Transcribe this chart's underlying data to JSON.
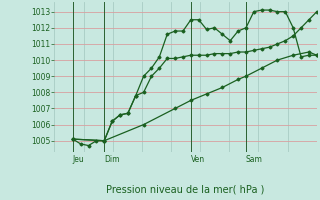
{
  "title": "Pression niveau de la mer( hPa )",
  "bg_color": "#c8e8e0",
  "plot_bg": "#c8e8e0",
  "grid_color_h": "#e8b8b8",
  "grid_color_v": "#b8d8d0",
  "line_color": "#1a6020",
  "ylim": [
    1004.3,
    1013.6
  ],
  "yticks": [
    1005,
    1006,
    1007,
    1008,
    1009,
    1010,
    1011,
    1012,
    1013
  ],
  "xlim": [
    0.0,
    1.0
  ],
  "day_positions": [
    0.07,
    0.19,
    0.52,
    0.73
  ],
  "day_labels": [
    "Jeu",
    "Dim",
    "Ven",
    "Sam"
  ],
  "vline_positions": [
    0.07,
    0.19,
    0.52,
    0.73
  ],
  "line1_x": [
    0.07,
    0.1,
    0.13,
    0.16,
    0.19,
    0.22,
    0.25,
    0.28,
    0.31,
    0.34,
    0.37,
    0.4,
    0.43,
    0.46,
    0.49,
    0.52,
    0.55,
    0.58,
    0.61,
    0.64,
    0.67,
    0.7,
    0.73,
    0.76,
    0.79,
    0.82,
    0.85,
    0.88,
    0.91,
    0.94,
    0.97,
    1.0
  ],
  "line1_y": [
    1005.1,
    1004.8,
    1004.7,
    1005.0,
    1005.0,
    1006.2,
    1006.6,
    1006.7,
    1007.8,
    1008.0,
    1009.0,
    1009.5,
    1010.1,
    1010.1,
    1010.2,
    1010.3,
    1010.3,
    1010.3,
    1010.4,
    1010.4,
    1010.4,
    1010.5,
    1010.5,
    1010.6,
    1010.7,
    1010.8,
    1011.0,
    1011.2,
    1011.5,
    1012.0,
    1012.5,
    1013.0
  ],
  "line2_x": [
    0.07,
    0.19,
    0.22,
    0.25,
    0.28,
    0.31,
    0.34,
    0.37,
    0.4,
    0.43,
    0.46,
    0.49,
    0.52,
    0.55,
    0.58,
    0.61,
    0.64,
    0.67,
    0.7,
    0.73,
    0.76,
    0.79,
    0.82,
    0.85,
    0.88,
    0.91,
    0.94,
    0.97,
    1.0
  ],
  "line2_y": [
    1005.1,
    1005.0,
    1006.2,
    1006.6,
    1006.7,
    1007.8,
    1009.0,
    1009.5,
    1010.2,
    1011.6,
    1011.8,
    1011.8,
    1012.5,
    1012.5,
    1011.9,
    1012.0,
    1011.6,
    1011.2,
    1011.8,
    1012.0,
    1013.0,
    1013.1,
    1013.1,
    1013.0,
    1013.0,
    1012.0,
    1010.2,
    1010.3,
    1010.3
  ],
  "line3_x": [
    0.07,
    0.19,
    0.34,
    0.46,
    0.52,
    0.58,
    0.64,
    0.7,
    0.73,
    0.79,
    0.85,
    0.91,
    0.97,
    1.0
  ],
  "line3_y": [
    1005.1,
    1005.0,
    1006.0,
    1007.0,
    1007.5,
    1007.9,
    1008.3,
    1008.8,
    1009.0,
    1009.5,
    1010.0,
    1010.3,
    1010.5,
    1010.3
  ]
}
